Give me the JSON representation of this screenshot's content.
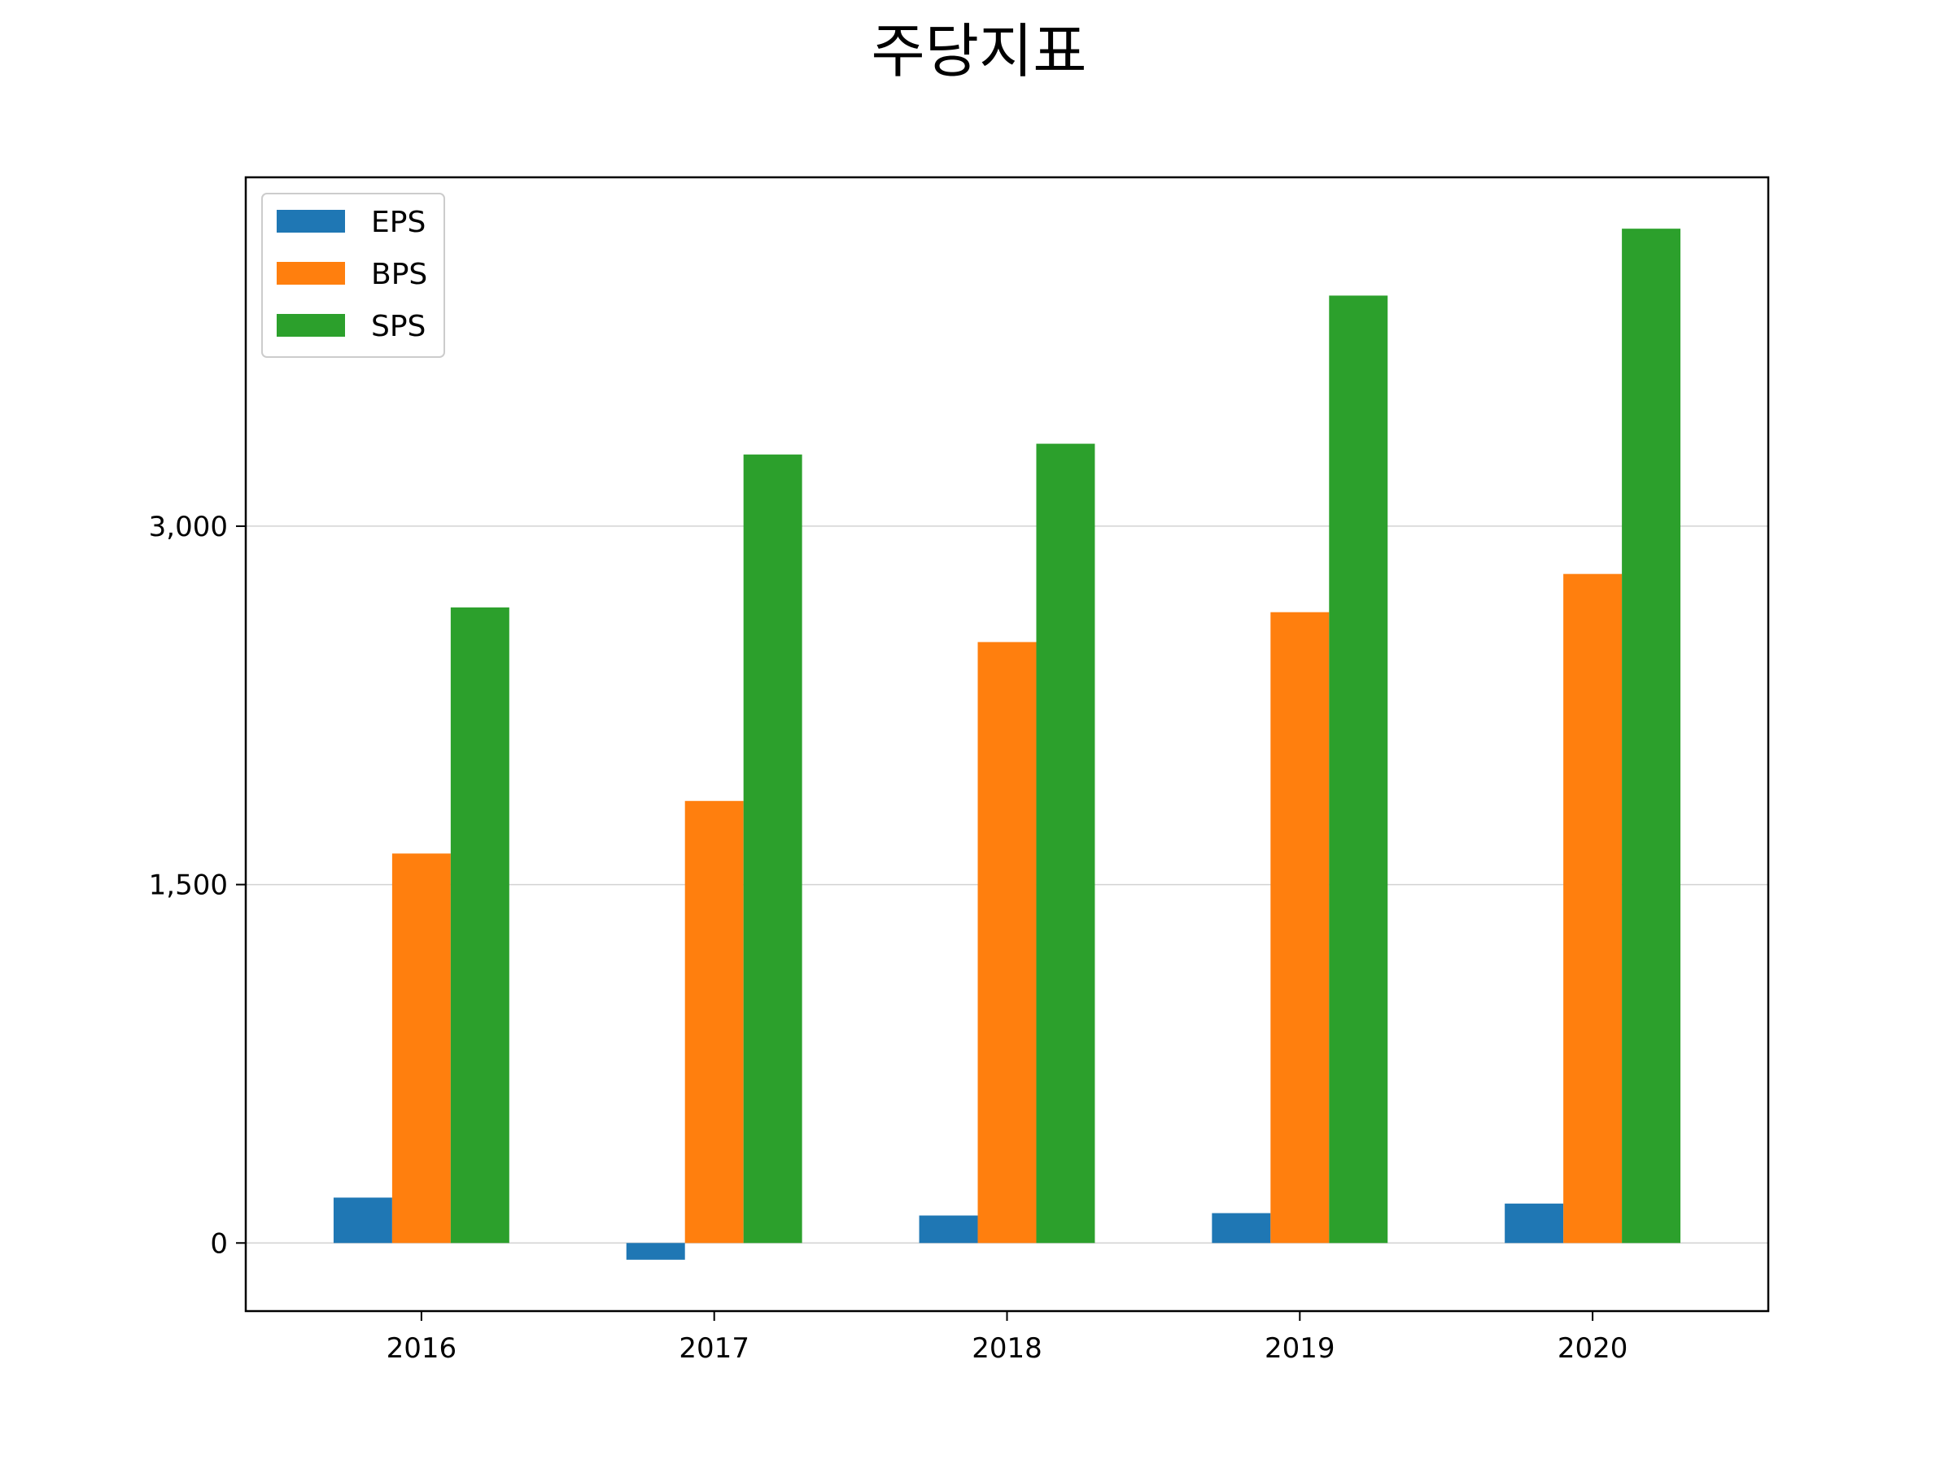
{
  "chart_data": {
    "type": "bar",
    "title": "주당지표",
    "xlabel": "",
    "ylabel": "",
    "categories": [
      "2016",
      "2017",
      "2018",
      "2019",
      "2020"
    ],
    "series": [
      {
        "name": "EPS",
        "color": "#1f77b4",
        "values": [
          190,
          -70,
          115,
          125,
          165
        ]
      },
      {
        "name": "BPS",
        "color": "#ff7f0e",
        "values": [
          1630,
          1850,
          2515,
          2640,
          2800
        ]
      },
      {
        "name": "SPS",
        "color": "#2ca02c",
        "values": [
          2660,
          3300,
          3345,
          3965,
          4245
        ]
      }
    ],
    "ylim": [
      -285,
      4460
    ],
    "yticks": [
      0,
      1500,
      3000
    ],
    "ytick_labels": [
      "0",
      "1,500",
      "3,000"
    ],
    "grid": "y",
    "legend": "upper-left"
  }
}
